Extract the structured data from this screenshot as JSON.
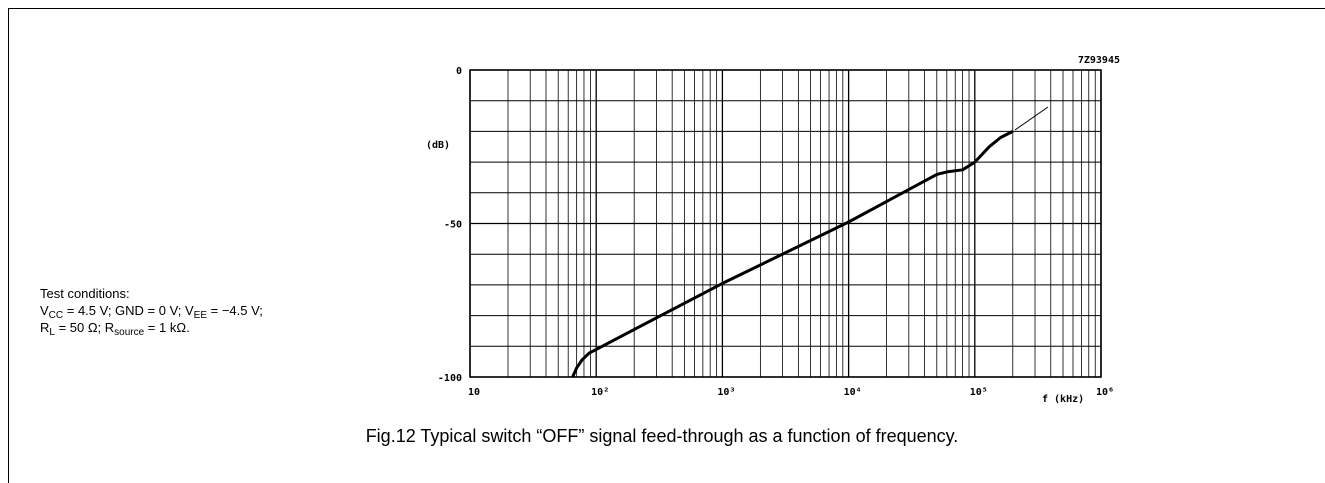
{
  "chart_data": {
    "type": "line",
    "code": "7Z93945",
    "ylabel": "(dB)",
    "xlabel": "f (kHz)",
    "caption": "Fig.12  Typical switch “OFF” signal feed-through as a function of frequency.",
    "conditions": [
      [
        "Test conditions:"
      ],
      [
        "V",
        "CC",
        " = 4.5 V; GND = 0 V; V",
        "EE",
        " = −4.5 V;"
      ],
      [
        "R",
        "L",
        " = 50 Ω; R",
        "source",
        " = 1 kΩ."
      ]
    ],
    "xscale": "log",
    "xlim": [
      10,
      1000000
    ],
    "ylim": [
      -100,
      0
    ],
    "xticks": [
      10,
      {
        "value": 100,
        "label": "10²"
      },
      {
        "value": 1000,
        "label": "10³"
      },
      {
        "value": 10000,
        "label": "10⁴"
      },
      {
        "value": 100000,
        "label": "10⁵"
      },
      {
        "value": 1000000,
        "label": "10⁶"
      }
    ],
    "yticks": [
      0,
      -50,
      -100
    ],
    "minor_yticks": [
      -10,
      -20,
      -30,
      -40,
      -60,
      -70,
      -80,
      -90
    ],
    "grid": true,
    "series": [
      {
        "color": "#000000",
        "x": [
          65,
          70,
          77,
          88,
          100,
          1000,
          10000,
          50000,
          60000,
          80000,
          100000,
          130000,
          160000,
          200000
        ],
        "values": [
          -100,
          -97,
          -94.5,
          -92.2,
          -91,
          -69.5,
          -49.5,
          -34,
          -33.2,
          -32.5,
          -30,
          -25,
          -22,
          -20
        ]
      }
    ]
  }
}
